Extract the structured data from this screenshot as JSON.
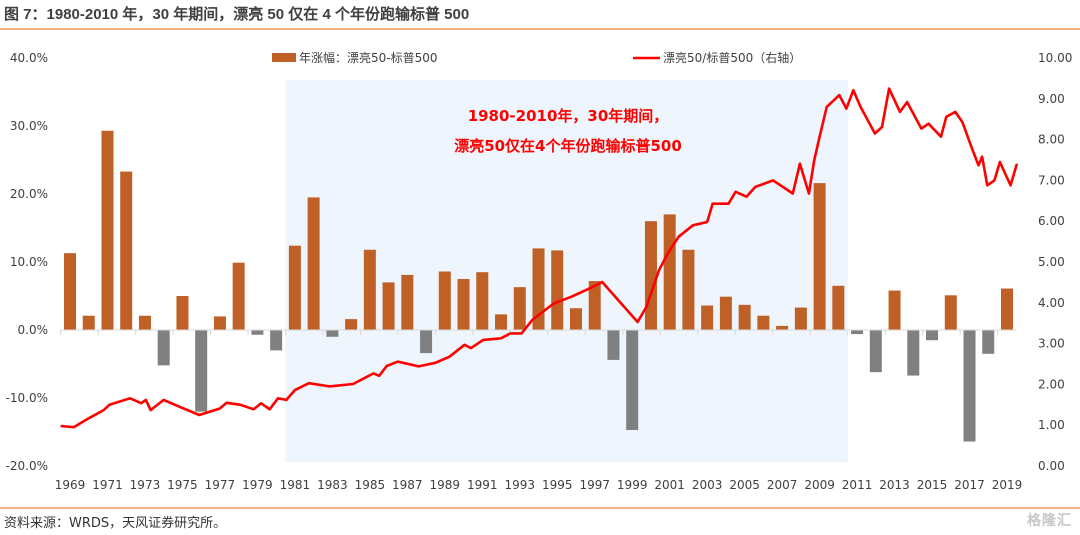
{
  "title": "图 7：1980-2010 年，30 年期间，漂亮 50 仅在 4 个年份跑输标普 500",
  "source": "资料来源：WRDS，天风证券研究所。",
  "watermark": "格隆汇",
  "colors": {
    "positive_bar": "#BF6026",
    "negative_bar": "#808080",
    "line": "#FF0000",
    "highlight": "#EEF5FC",
    "rule": "#F4B183"
  },
  "chart_data": {
    "type": "bar",
    "title": "图 7：1980-2010 年，30 年期间，漂亮 50 仅在 4 个年份跑输标普 500",
    "legend_position": "top",
    "annotation": [
      "1980-2010年，30年期间，",
      "漂亮50仅在4个年份跑输标普500"
    ],
    "highlight_range": [
      1981,
      2010
    ],
    "categories": [
      1969,
      1970,
      1971,
      1972,
      1973,
      1974,
      1975,
      1976,
      1977,
      1978,
      1979,
      1980,
      1981,
      1982,
      1983,
      1984,
      1985,
      1986,
      1987,
      1988,
      1989,
      1990,
      1991,
      1992,
      1993,
      1994,
      1995,
      1996,
      1997,
      1998,
      1999,
      2000,
      2001,
      2002,
      2003,
      2004,
      2005,
      2006,
      2007,
      2008,
      2009,
      2010,
      2011,
      2012,
      2013,
      2014,
      2015,
      2016,
      2017,
      2018,
      2019
    ],
    "x_tick_labels": [
      "1969",
      "1971",
      "1973",
      "1975",
      "1977",
      "1979",
      "1981",
      "1983",
      "1985",
      "1987",
      "1989",
      "1991",
      "1993",
      "1995",
      "1997",
      "1999",
      "2001",
      "2003",
      "2005",
      "2007",
      "2009",
      "2011",
      "2013",
      "2015",
      "2017",
      "2019"
    ],
    "left_axis": {
      "ylim": [
        -20,
        40
      ],
      "ticks": [
        "-20.0%",
        "-10.0%",
        "0.0%",
        "10.0%",
        "20.0%",
        "30.0%",
        "40.0%"
      ],
      "tick_values": [
        -20,
        -10,
        0,
        10,
        20,
        30,
        40
      ]
    },
    "right_axis": {
      "ylim": [
        0,
        10
      ],
      "ticks": [
        "0.00",
        "1.00",
        "2.00",
        "3.00",
        "4.00",
        "5.00",
        "6.00",
        "7.00",
        "8.00",
        "9.00",
        "10.00"
      ],
      "tick_values": [
        0,
        1,
        2,
        3,
        4,
        5,
        6,
        7,
        8,
        9,
        10
      ]
    },
    "series": [
      {
        "name": "年涨幅：漂亮50-标普500",
        "type": "bar",
        "axis": "left",
        "unit": "%",
        "values": [
          11.3,
          2.1,
          29.3,
          23.3,
          2.1,
          -5.2,
          5.0,
          -12.0,
          2.0,
          9.9,
          -0.7,
          -3.0,
          12.4,
          19.5,
          -1.0,
          1.6,
          11.8,
          7.0,
          8.1,
          -3.4,
          8.6,
          7.5,
          8.5,
          2.3,
          6.3,
          12.0,
          11.7,
          3.2,
          7.2,
          -4.4,
          -14.7,
          16.0,
          17.0,
          11.8,
          3.6,
          4.9,
          3.7,
          2.1,
          0.6,
          3.3,
          21.6,
          6.5,
          -0.6,
          -6.2,
          5.8,
          -6.7,
          -1.5,
          5.1,
          -16.4,
          -3.5,
          6.1
        ]
      },
      {
        "name": "漂亮50/标普500（右轴）",
        "type": "line",
        "axis": "right",
        "x": [
          1968.5,
          1969.2,
          1970.0,
          1970.8,
          1971.1,
          1972.2,
          1972.8,
          1973.05,
          1973.3,
          1974.0,
          1974.8,
          1975.9,
          1977.0,
          1977.35,
          1978.1,
          1978.8,
          1979.2,
          1979.65,
          1980.1,
          1980.55,
          1981.0,
          1981.75,
          1982.85,
          1984.1,
          1985.2,
          1985.5,
          1985.9,
          1986.5,
          1987.6,
          1988.5,
          1989.25,
          1990.05,
          1990.4,
          1991.05,
          1992.0,
          1992.5,
          1993.1,
          1993.67,
          1994.8,
          1995.76,
          1996.9,
          1997.4,
          1998.24,
          1999.29,
          1999.76,
          2000.43,
          2000.9,
          2001.48,
          2002.24,
          2003.0,
          2003.29,
          2004.14,
          2004.52,
          2005.1,
          2005.57,
          2006.52,
          2007.57,
          2007.95,
          2008.43,
          2008.71,
          2009.0,
          2009.38,
          2010.05,
          2010.43,
          2010.8,
          2011.19,
          2011.95,
          2012.33,
          2012.71,
          2013.29,
          2013.67,
          2014.43,
          2014.81,
          2015.48,
          2015.76,
          2016.24,
          2016.62,
          2017.1,
          2017.48,
          2017.67,
          2017.95,
          2018.33,
          2018.62,
          2018.9,
          2019.19,
          2019.53
        ],
        "values": [
          0.98,
          0.95,
          1.17,
          1.37,
          1.5,
          1.66,
          1.54,
          1.62,
          1.37,
          1.62,
          1.46,
          1.25,
          1.41,
          1.55,
          1.5,
          1.39,
          1.54,
          1.39,
          1.66,
          1.62,
          1.86,
          2.03,
          1.95,
          2.01,
          2.27,
          2.21,
          2.45,
          2.56,
          2.44,
          2.53,
          2.68,
          2.97,
          2.89,
          3.09,
          3.13,
          3.25,
          3.25,
          3.58,
          3.98,
          4.15,
          4.39,
          4.51,
          4.07,
          3.53,
          3.9,
          4.8,
          5.21,
          5.62,
          5.9,
          5.98,
          6.43,
          6.43,
          6.72,
          6.6,
          6.84,
          7.0,
          6.68,
          7.41,
          6.68,
          7.49,
          8.07,
          8.8,
          9.09,
          8.76,
          9.21,
          8.8,
          8.15,
          8.31,
          9.25,
          8.68,
          8.92,
          8.27,
          8.39,
          8.07,
          8.56,
          8.68,
          8.43,
          7.82,
          7.37,
          7.58,
          6.88,
          7.0,
          7.45,
          7.17,
          6.88,
          7.41
        ]
      }
    ]
  }
}
